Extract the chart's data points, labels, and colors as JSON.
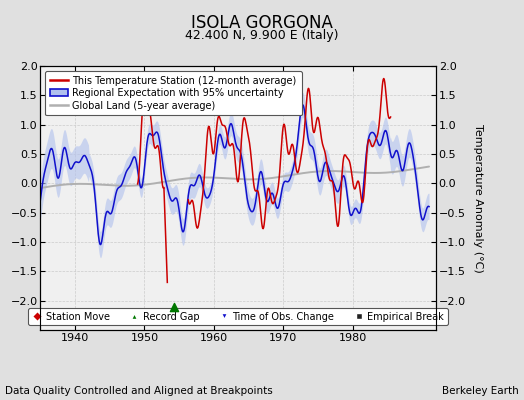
{
  "title": "ISOLA GORGONA",
  "subtitle": "42.400 N, 9.900 E (Italy)",
  "xlabel_left": "Data Quality Controlled and Aligned at Breakpoints",
  "xlabel_right": "Berkeley Earth",
  "ylabel": "Temperature Anomaly (°C)",
  "xlim": [
    1935,
    1992
  ],
  "ylim": [
    -2.5,
    2.0
  ],
  "yticks": [
    -2.0,
    -1.5,
    -1.0,
    -0.5,
    0.0,
    0.5,
    1.0,
    1.5,
    2.0
  ],
  "xticks": [
    1940,
    1950,
    1960,
    1970,
    1980
  ],
  "bg_color": "#e0e0e0",
  "plot_bg_color": "#f0f0f0",
  "record_gap_x": 1954.3,
  "record_gap_y": -2.1,
  "title_fontsize": 12,
  "subtitle_fontsize": 9,
  "tick_fontsize": 8,
  "label_fontsize": 7.5
}
